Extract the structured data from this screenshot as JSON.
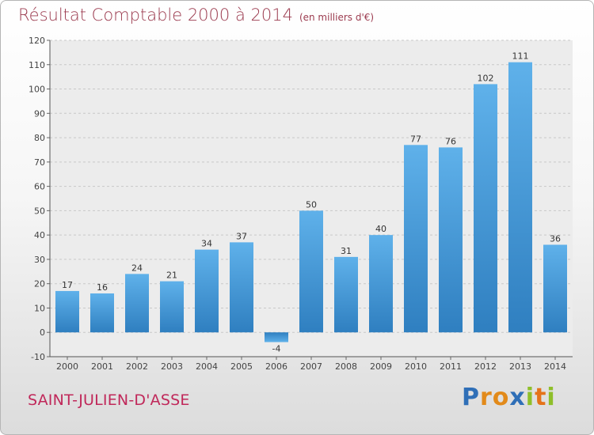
{
  "chart_data": {
    "type": "bar",
    "title": "Résultat Comptable 2000 à 2014",
    "subtitle": "(en milliers d'€)",
    "categories": [
      "2000",
      "2001",
      "2002",
      "2003",
      "2004",
      "2005",
      "2006",
      "2007",
      "2008",
      "2009",
      "2010",
      "2011",
      "2012",
      "2013",
      "2014"
    ],
    "values": [
      17,
      16,
      24,
      21,
      34,
      37,
      -4,
      50,
      31,
      40,
      77,
      76,
      102,
      111,
      36
    ],
    "ylim": [
      -10,
      120
    ],
    "yticks": [
      -10,
      0,
      10,
      20,
      30,
      40,
      50,
      60,
      70,
      80,
      90,
      100,
      110,
      120
    ],
    "grid": true,
    "bar_color": "#4a9ad6",
    "xlabel": "",
    "ylabel": ""
  },
  "commune": "SAINT-JULIEN-D'ASSE",
  "logo": {
    "letters": [
      "P",
      "r",
      "o",
      "x",
      "i",
      "t",
      "i"
    ],
    "colors": [
      "#2f6fb7",
      "#e28a1a",
      "#e28a1a",
      "#2f6fb7",
      "#8fbf2a",
      "#e5731a",
      "#8fbf2a"
    ]
  }
}
